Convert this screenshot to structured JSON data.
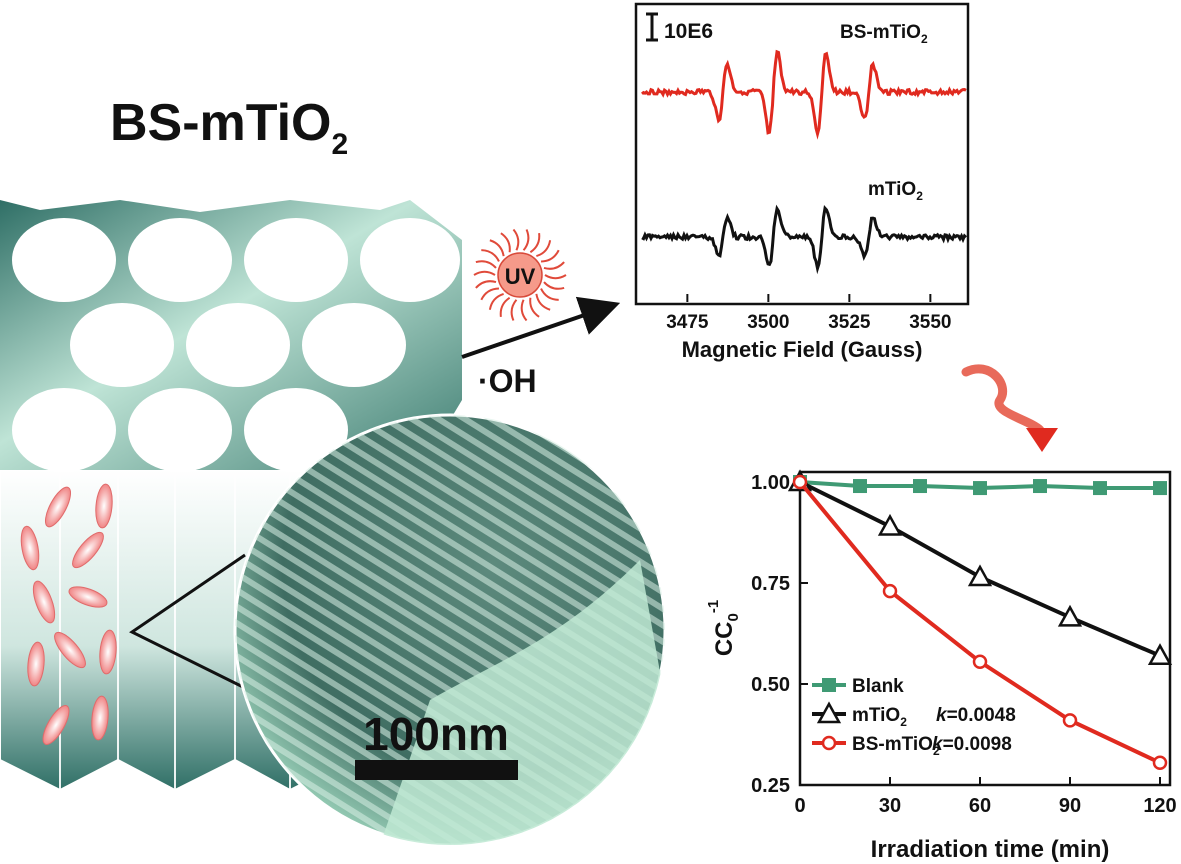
{
  "schematic": {
    "title_main": "BS-mTiO",
    "title_sub": "2",
    "uv_label": "UV",
    "radical_label": "·OH",
    "scale_bar_label": "100nm"
  },
  "colors": {
    "teal_dark": "#2f6f66",
    "teal_light": "#bfe4d6",
    "red": "#e02a1f",
    "black": "#111111",
    "green_series": "#3f9a74",
    "rod_pink": "#f28c8c"
  },
  "epr": {
    "scale_label": "10E6",
    "trace_top": {
      "name": "BS-mTiO",
      "sub": "2"
    },
    "trace_bottom": {
      "name": "mTiO",
      "sub": "2"
    },
    "x_ticks": [
      "3475",
      "3500",
      "3525",
      "3550"
    ],
    "xlabel": "Magnetic Field (Gauss)",
    "peaks_gauss": [
      3486.0,
      3501.5,
      3516.5,
      3531.0
    ],
    "xlim": [
      3461,
      3561
    ]
  },
  "chart_data": {
    "type": "line",
    "xlabel": "Irradiation time (min)",
    "ylabel_main": "CC",
    "ylabel_sub": "0",
    "ylabel_sup": "-1",
    "xlim": [
      0,
      120
    ],
    "ylim": [
      0.25,
      1.0
    ],
    "x_ticks": [
      "0",
      "30",
      "60",
      "90",
      "120"
    ],
    "y_ticks": [
      "0.25",
      "0.50",
      "0.75",
      "1.00"
    ],
    "series": [
      {
        "name": "Blank",
        "k_label": "",
        "marker": "square",
        "color": "#3f9a74",
        "x": [
          0,
          20,
          40,
          60,
          80,
          100,
          120
        ],
        "y": [
          1.0,
          0.99,
          0.99,
          0.985,
          0.99,
          0.985,
          0.985
        ]
      },
      {
        "name": "mTiO",
        "name_sub": "2",
        "k_label": "k=0.0048",
        "marker": "triangle",
        "color": "#111111",
        "x": [
          0,
          30,
          60,
          90,
          120
        ],
        "y": [
          1.0,
          0.89,
          0.765,
          0.665,
          0.57
        ]
      },
      {
        "name": "BS-mTiO",
        "name_sub": "2",
        "k_label": "k=0.0098",
        "marker": "circle",
        "color": "#e02a1f",
        "x": [
          0,
          30,
          60,
          90,
          120
        ],
        "y": [
          1.0,
          0.73,
          0.555,
          0.41,
          0.305
        ]
      }
    ]
  }
}
